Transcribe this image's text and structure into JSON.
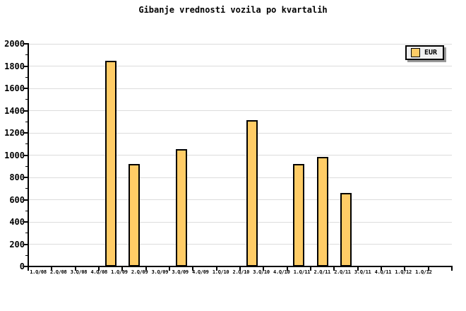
{
  "title": "Gibanje vrednosti vozila po kvartalih",
  "legend": {
    "label": "EUR",
    "swatch_color": "#FFCC66",
    "background": "#F0F0F0",
    "shadow_color": "#999999"
  },
  "chart_data": {
    "type": "bar",
    "title": "Gibanje vrednosti vozila po kvartalih",
    "series": [
      {
        "name": "EUR",
        "categories": [
          "4.Q/08",
          "1.Q/09",
          "3.Q/09",
          "2.Q/10",
          "4.Q/10",
          "1.Q/11",
          "2.Q/11"
        ],
        "values": [
          1845,
          920,
          1055,
          1315,
          920,
          985,
          660
        ]
      }
    ],
    "bar_slot_indices": [
      3,
      4,
      6,
      9,
      11,
      12,
      13
    ],
    "num_slots": 18,
    "x_axis_labels_as_rendered": [
      "1.Q/08",
      "2.Q/08",
      "3.Q/08",
      "4.Q/08",
      "1.Q/09",
      "2.Q/09",
      "3.Q/09",
      "3.Q/09",
      "4.Q/09",
      "1.Q/10",
      "2.Q/10",
      "3.Q/10",
      "4.Q/10",
      "1.Q/11",
      "2.Q/11",
      "2.Q/11",
      "3.Q/11",
      "4.Q/11",
      "1.Q/12",
      "1.Q/12"
    ],
    "xlabel": "",
    "ylabel": "",
    "ylim": [
      0,
      2000
    ],
    "y_major_step": 200,
    "y_minor_step": 100,
    "grid": true,
    "legend_position": "top-right",
    "colors": {
      "bar_fill": "#FFCC66",
      "bar_border": "#000000",
      "gridline": "#DCDCDC",
      "axis": "#000000"
    }
  }
}
